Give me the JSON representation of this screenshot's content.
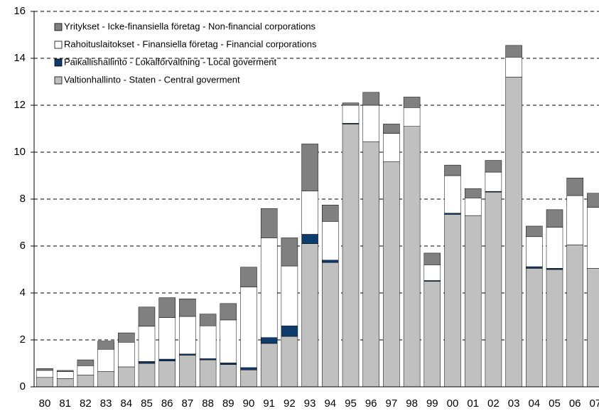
{
  "chart_data": {
    "type": "stacked_bar",
    "categories": [
      "80",
      "81",
      "82",
      "83",
      "84",
      "85",
      "86",
      "87",
      "88",
      "89",
      "90",
      "91",
      "92",
      "93",
      "94",
      "95",
      "96",
      "97",
      "98",
      "99",
      "00",
      "01",
      "02",
      "03",
      "04",
      "05",
      "06",
      "07"
    ],
    "series": [
      {
        "name": "Valtionhallinto - Staten - Central goverment",
        "color": "#c0c0c0",
        "values": [
          0.4,
          0.35,
          0.5,
          0.65,
          0.85,
          1.0,
          1.1,
          1.35,
          1.15,
          0.95,
          0.72,
          1.85,
          2.15,
          6.1,
          5.3,
          11.2,
          10.45,
          9.6,
          11.1,
          4.5,
          7.35,
          7.3,
          8.3,
          13.2,
          5.05,
          5.0,
          6.05,
          5.05
        ]
      },
      {
        "name": "Paikallishallinto - Lokalförvaltning - Local goverment",
        "color": "#0d3b6e",
        "values": [
          0,
          0,
          0,
          0,
          0,
          0.08,
          0.08,
          0.05,
          0.05,
          0.07,
          0.1,
          0.25,
          0.45,
          0.4,
          0.1,
          0.03,
          0,
          0,
          0,
          0.03,
          0.05,
          0,
          0.03,
          0,
          0.07,
          0.05,
          0,
          0
        ]
      },
      {
        "name": "Rahoituslaitokset - Finansiella företag - Financial corporations",
        "color": "#ffffff",
        "values": [
          0.3,
          0.3,
          0.4,
          0.95,
          1.05,
          1.5,
          1.77,
          1.6,
          1.4,
          1.83,
          3.43,
          4.25,
          2.55,
          1.85,
          1.65,
          0.77,
          1.55,
          1.2,
          0.8,
          0.67,
          1.6,
          0.75,
          0.82,
          0.85,
          1.28,
          1.75,
          2.1,
          2.6
        ]
      },
      {
        "name": "Yritykset - Icke-finansiella företag - Non-financial corporations",
        "color": "#808080",
        "values": [
          0.08,
          0.05,
          0.25,
          0.35,
          0.4,
          0.82,
          0.85,
          0.75,
          0.5,
          0.7,
          0.85,
          1.25,
          1.2,
          2.0,
          0.7,
          0.1,
          0.55,
          0.4,
          0.45,
          0.5,
          0.45,
          0.4,
          0.5,
          0.5,
          0.45,
          0.75,
          0.75,
          0.6
        ]
      }
    ],
    "ylim": [
      0,
      16
    ],
    "yticks": [
      0,
      2,
      4,
      6,
      8,
      10,
      12,
      14,
      16
    ],
    "grid": true
  }
}
